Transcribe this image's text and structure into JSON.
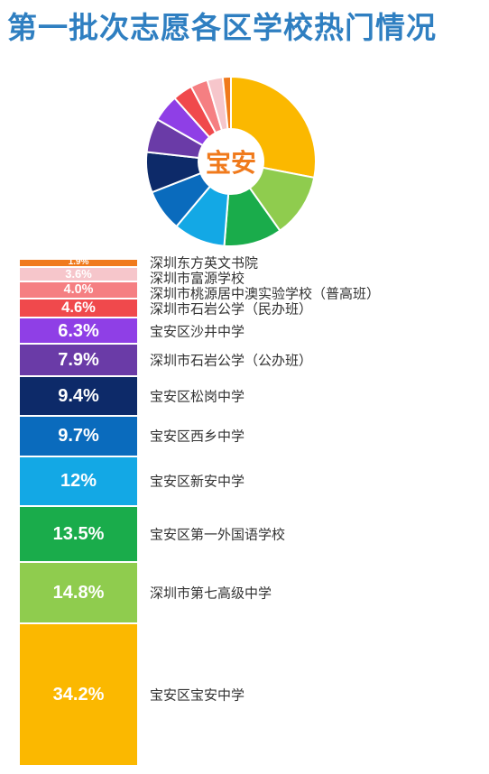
{
  "title": "第一批次志愿各区学校热门情况",
  "center_label": "宝安",
  "chart_data": {
    "type": "pie",
    "title": "第一批次志愿各区学校热门情况",
    "center_label": "宝安",
    "categories": [
      "宝安区宝安中学",
      "深圳市第七高级中学",
      "宝安区第一外国语学校",
      "宝安区新安中学",
      "宝安区西乡中学",
      "宝安区松岗中学",
      "深圳市石岩公学（公办班）",
      "宝安区沙井中学",
      "深圳市石岩公学（民办班）",
      "深圳市桃源居中澳实验学校（普高班）",
      "深圳市富源学校",
      "深圳东方英文书院"
    ],
    "values": [
      34.2,
      14.8,
      13.5,
      12,
      9.7,
      9.4,
      7.9,
      6.3,
      4.6,
      4.0,
      3.6,
      1.9
    ],
    "value_labels": [
      "34.2%",
      "14.8%",
      "13.5%",
      "12%",
      "9.7%",
      "9.4%",
      "7.9%",
      "6.3%",
      "4.6%",
      "4.0%",
      "3.6%",
      "1.9%"
    ],
    "colors": [
      "#fbb800",
      "#8fcc4e",
      "#1aac4b",
      "#13a8e5",
      "#0a6bbd",
      "#0d2a69",
      "#6a3ba7",
      "#8f3fe6",
      "#f0494c",
      "#f57f82",
      "#f6c6cb",
      "#f07a1c"
    ]
  }
}
